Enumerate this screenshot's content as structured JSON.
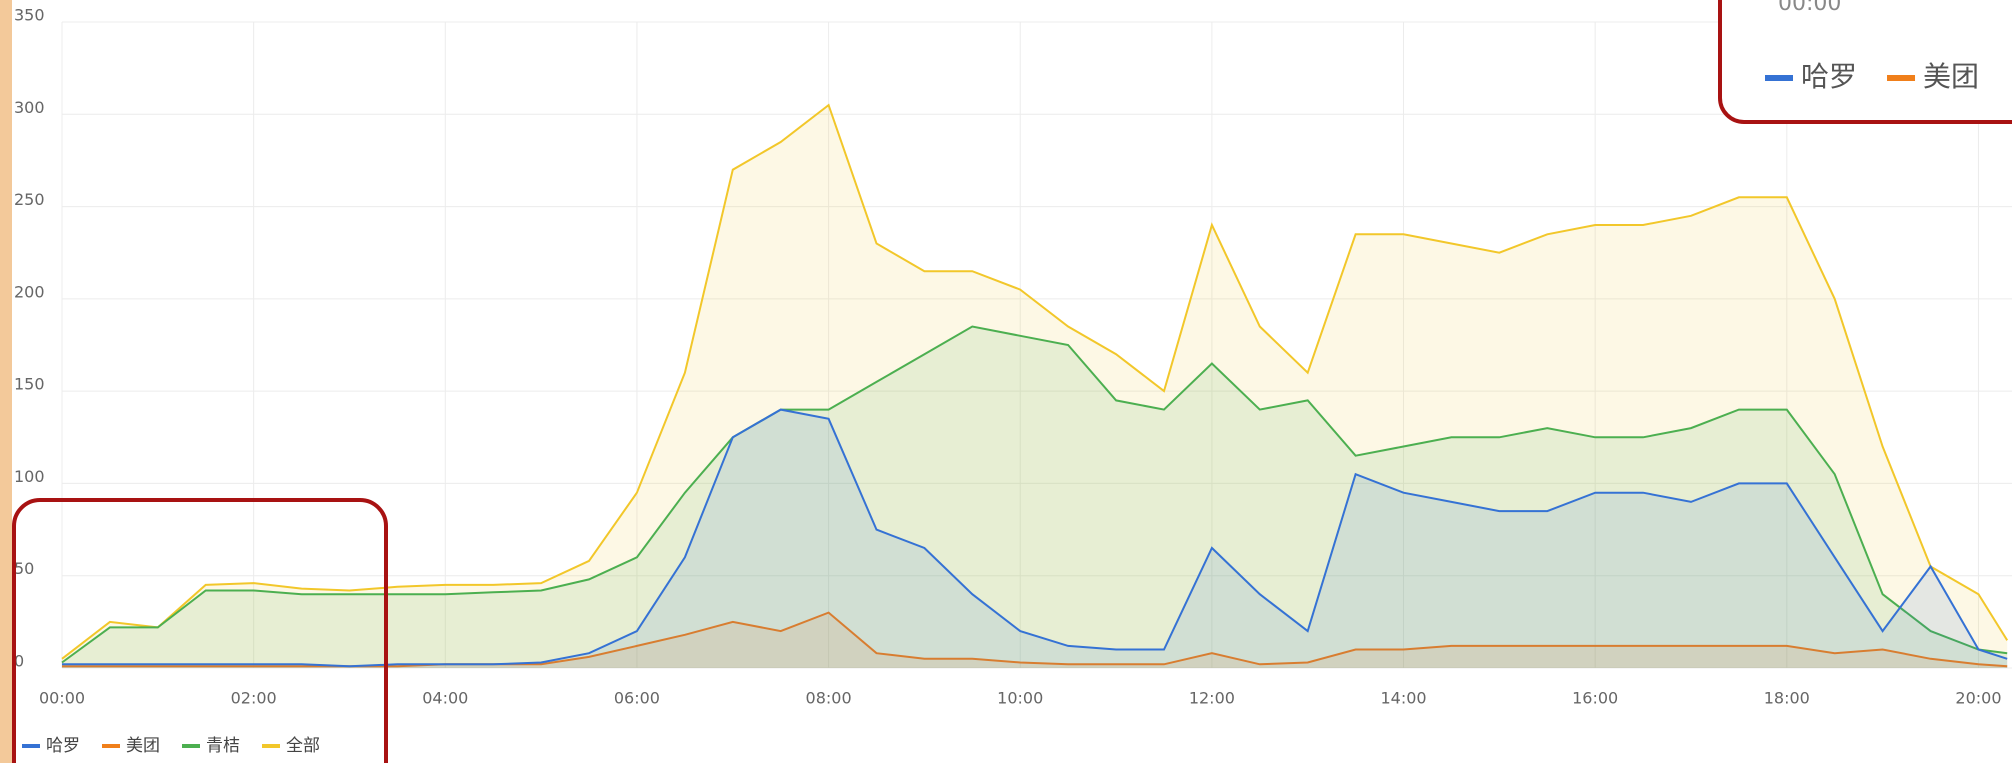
{
  "chart_data": {
    "type": "area",
    "x": [
      0,
      0.5,
      1,
      1.5,
      2,
      2.5,
      3,
      3.5,
      4,
      4.5,
      5,
      5.5,
      6,
      6.5,
      7,
      7.5,
      8,
      8.5,
      9,
      9.5,
      10,
      10.5,
      11,
      11.5,
      12,
      12.5,
      13,
      13.5,
      14,
      14.5,
      15,
      15.5,
      16,
      16.5,
      17,
      17.5,
      18,
      18.5,
      19,
      19.5,
      20,
      20.3
    ],
    "series": [
      {
        "name": "哈罗",
        "color": "#3572d4",
        "values": [
          2,
          2,
          2,
          2,
          2,
          2,
          1,
          2,
          2,
          2,
          3,
          8,
          20,
          60,
          125,
          140,
          135,
          75,
          65,
          40,
          20,
          12,
          10,
          10,
          65,
          40,
          20,
          105,
          95,
          90,
          85,
          85,
          95,
          95,
          90,
          100,
          100,
          60,
          20,
          55,
          10,
          5
        ]
      },
      {
        "name": "美团",
        "color": "#f07f1a",
        "values": [
          1,
          1,
          1,
          1,
          1,
          1,
          1,
          1,
          2,
          2,
          2,
          6,
          12,
          18,
          25,
          20,
          30,
          8,
          5,
          5,
          3,
          2,
          2,
          2,
          8,
          2,
          3,
          10,
          10,
          12,
          12,
          12,
          12,
          12,
          12,
          12,
          12,
          8,
          10,
          5,
          2,
          1
        ]
      },
      {
        "name": "青桔",
        "color": "#4caf50",
        "values": [
          3,
          22,
          22,
          42,
          42,
          40,
          40,
          40,
          40,
          41,
          42,
          48,
          60,
          95,
          125,
          140,
          140,
          155,
          170,
          185,
          180,
          175,
          145,
          140,
          165,
          140,
          145,
          115,
          120,
          125,
          125,
          130,
          125,
          125,
          130,
          140,
          140,
          105,
          40,
          20,
          10,
          8
        ]
      },
      {
        "name": "全部",
        "color": "#f2c72a",
        "values": [
          5,
          25,
          22,
          45,
          46,
          43,
          42,
          44,
          45,
          45,
          46,
          58,
          95,
          160,
          270,
          285,
          305,
          230,
          215,
          215,
          205,
          185,
          170,
          150,
          240,
          185,
          160,
          235,
          235,
          230,
          225,
          235,
          240,
          240,
          245,
          255,
          255,
          200,
          120,
          55,
          40,
          15
        ]
      }
    ],
    "xlim": [
      0,
      20.35
    ],
    "xticks": [
      {
        "value": 0,
        "label": "00:00"
      },
      {
        "value": 2,
        "label": "02:00"
      },
      {
        "value": 4,
        "label": "04:00"
      },
      {
        "value": 6,
        "label": "06:00"
      },
      {
        "value": 8,
        "label": "08:00"
      },
      {
        "value": 10,
        "label": "10:00"
      },
      {
        "value": 12,
        "label": "12:00"
      },
      {
        "value": 14,
        "label": "14:00"
      },
      {
        "value": 16,
        "label": "16:00"
      },
      {
        "value": 18,
        "label": "18:00"
      },
      {
        "value": 20,
        "label": "20:00"
      }
    ],
    "ylim": [
      0,
      350
    ],
    "yticks": [
      0,
      50,
      100,
      150,
      200,
      250,
      300,
      350
    ],
    "grid": true,
    "legend": "bottom-left",
    "tooltip": {
      "title": "00:00",
      "items": [
        "哈罗",
        "美团"
      ]
    }
  }
}
